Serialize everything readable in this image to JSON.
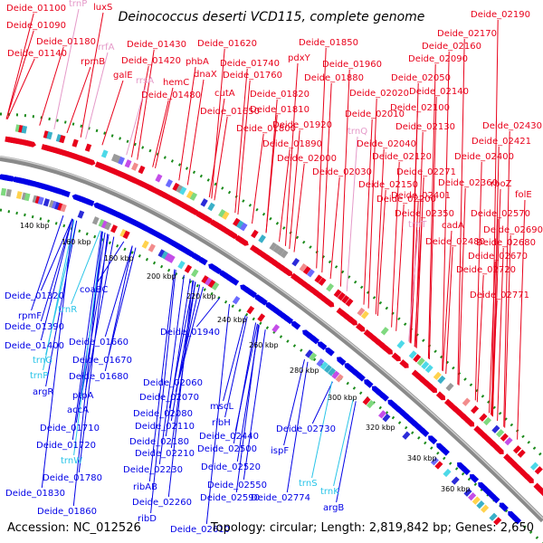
{
  "title": "Deinococcus deserti VCD115, complete genome",
  "footer": {
    "accession": "Accession: NC_012526",
    "info": "Topology: circular; Length: 2,819,842 bp; Genes: 2,650"
  },
  "colors": {
    "forward": "#e8001a",
    "reverse": "#0000e6",
    "rna": "#e59ac9",
    "rna_rev": "#29c4e8",
    "backbone": "#8a8a8a",
    "dots": "#1a8a1a"
  },
  "ticks": [
    "140 kbp",
    "160 kbp",
    "180 kbp",
    "200 kbp",
    "220 kbp",
    "240 kbp",
    "260 kbp",
    "280 kbp",
    "300 kbp",
    "320 kbp",
    "340 kbp",
    "360 kbp"
  ],
  "labels_top": [
    {
      "text": "Deide_01100",
      "kind": "f"
    },
    {
      "text": "Deide_01090",
      "kind": "f"
    },
    {
      "text": "trnP",
      "kind": "r"
    },
    {
      "text": "Deide_01180",
      "kind": "f"
    },
    {
      "text": "luxS",
      "kind": "f"
    },
    {
      "text": "Deide_01140",
      "kind": "f"
    },
    {
      "text": "rrfA",
      "kind": "r"
    },
    {
      "text": "rpmB",
      "kind": "f"
    },
    {
      "text": "Deide_01430",
      "kind": "f"
    },
    {
      "text": "Deide_01420",
      "kind": "f"
    },
    {
      "text": "galE",
      "kind": "f"
    },
    {
      "text": "rrsA",
      "kind": "r"
    },
    {
      "text": "Deide_01480",
      "kind": "f"
    },
    {
      "text": "hemC",
      "kind": "f"
    },
    {
      "text": "Deide_01620",
      "kind": "f"
    },
    {
      "text": "phbA",
      "kind": "f"
    },
    {
      "text": "dnaX",
      "kind": "f"
    },
    {
      "text": "Deide_01740",
      "kind": "f"
    },
    {
      "text": "Deide_01760",
      "kind": "f"
    },
    {
      "text": "pdxY",
      "kind": "f"
    },
    {
      "text": "Deide_01850",
      "kind": "f"
    },
    {
      "text": "Deide_01650",
      "kind": "f"
    },
    {
      "text": "cutA",
      "kind": "f"
    },
    {
      "text": "Deide_01820",
      "kind": "f"
    },
    {
      "text": "Deide_01810",
      "kind": "f"
    },
    {
      "text": "Deide_01800",
      "kind": "f"
    },
    {
      "text": "Deide_01920",
      "kind": "f"
    },
    {
      "text": "Deide_01890",
      "kind": "f"
    },
    {
      "text": "Deide_01960",
      "kind": "f"
    },
    {
      "text": "Deide_01880",
      "kind": "f"
    },
    {
      "text": "Deide_02020",
      "kind": "f"
    },
    {
      "text": "Deide_02010",
      "kind": "f"
    },
    {
      "text": "trnQ",
      "kind": "r"
    },
    {
      "text": "Deide_02040",
      "kind": "f"
    },
    {
      "text": "Deide_02000",
      "kind": "f"
    },
    {
      "text": "Deide_02030",
      "kind": "f"
    },
    {
      "text": "Deide_02150",
      "kind": "f"
    },
    {
      "text": "Deide_02200",
      "kind": "f"
    },
    {
      "text": "Deide_02120",
      "kind": "f"
    },
    {
      "text": "Deide_02130",
      "kind": "f"
    },
    {
      "text": "Deide_02100",
      "kind": "f"
    },
    {
      "text": "Deide_02140",
      "kind": "f"
    },
    {
      "text": "Deide_02050",
      "kind": "f"
    },
    {
      "text": "Deide_02090",
      "kind": "f"
    },
    {
      "text": "Deide_02160",
      "kind": "f"
    },
    {
      "text": "Deide_02170",
      "kind": "f"
    },
    {
      "text": "Deide_02190",
      "kind": "f"
    },
    {
      "text": "Deide_02271",
      "kind": "f"
    },
    {
      "text": "Deide_02400",
      "kind": "f"
    },
    {
      "text": "Deide_02421",
      "kind": "f"
    },
    {
      "text": "Deide_02430",
      "kind": "f"
    },
    {
      "text": "Deide_02360",
      "kind": "f"
    },
    {
      "text": "rpoZ",
      "kind": "f"
    },
    {
      "text": "Deide_02401",
      "kind": "f"
    },
    {
      "text": "folE",
      "kind": "f"
    },
    {
      "text": "Deide_02570",
      "kind": "f"
    },
    {
      "text": "Deide_02350",
      "kind": "f"
    },
    {
      "text": "trnT",
      "kind": "r"
    },
    {
      "text": "cadA",
      "kind": "f"
    },
    {
      "text": "Deide_02690",
      "kind": "f"
    },
    {
      "text": "Deide_02480",
      "kind": "f"
    },
    {
      "text": "Deide_02680",
      "kind": "f"
    },
    {
      "text": "Deide_02670",
      "kind": "f"
    },
    {
      "text": "Deide_02720",
      "kind": "f"
    },
    {
      "text": "Deide_02771",
      "kind": "f"
    }
  ],
  "labels_bottom": [
    {
      "text": "coaBC",
      "kind": "b"
    },
    {
      "text": "Deide_01320",
      "kind": "b"
    },
    {
      "text": "trnR",
      "kind": "c"
    },
    {
      "text": "rpmF",
      "kind": "b"
    },
    {
      "text": "Deide_01390",
      "kind": "b"
    },
    {
      "text": "Deide_01940",
      "kind": "b"
    },
    {
      "text": "Deide_01660",
      "kind": "b"
    },
    {
      "text": "Deide_01400",
      "kind": "b"
    },
    {
      "text": "trnG",
      "kind": "c"
    },
    {
      "text": "Deide_01670",
      "kind": "b"
    },
    {
      "text": "trnP",
      "kind": "c"
    },
    {
      "text": "Deide_01680",
      "kind": "b"
    },
    {
      "text": "argR",
      "kind": "b"
    },
    {
      "text": "Deide_02060",
      "kind": "b"
    },
    {
      "text": "Deide_02070",
      "kind": "b"
    },
    {
      "text": "ptpA",
      "kind": "b"
    },
    {
      "text": "accA",
      "kind": "b"
    },
    {
      "text": "mscL",
      "kind": "b"
    },
    {
      "text": "Deide_02080",
      "kind": "b"
    },
    {
      "text": "ribH",
      "kind": "b"
    },
    {
      "text": "Deide_02110",
      "kind": "b"
    },
    {
      "text": "Deide_01710",
      "kind": "b"
    },
    {
      "text": "Deide_02730",
      "kind": "b"
    },
    {
      "text": "Deide_02180",
      "kind": "b"
    },
    {
      "text": "Deide_02440",
      "kind": "b"
    },
    {
      "text": "Deide_01720",
      "kind": "b"
    },
    {
      "text": "Deide_02210",
      "kind": "b"
    },
    {
      "text": "Deide_02500",
      "kind": "b"
    },
    {
      "text": "ispF",
      "kind": "b"
    },
    {
      "text": "trnW",
      "kind": "c"
    },
    {
      "text": "Deide_02520",
      "kind": "b"
    },
    {
      "text": "Deide_01780",
      "kind": "b"
    },
    {
      "text": "Deide_02230",
      "kind": "b"
    },
    {
      "text": "trnS",
      "kind": "c"
    },
    {
      "text": "trnK",
      "kind": "c"
    },
    {
      "text": "ribAB",
      "kind": "b"
    },
    {
      "text": "Deide_02550",
      "kind": "b"
    },
    {
      "text": "Deide_01830",
      "kind": "b"
    },
    {
      "text": "Deide_02590",
      "kind": "b"
    },
    {
      "text": "Deide_02774",
      "kind": "b"
    },
    {
      "text": "Deide_02260",
      "kind": "b"
    },
    {
      "text": "argB",
      "kind": "b"
    },
    {
      "text": "Deide_01860",
      "kind": "b"
    },
    {
      "text": "ribD",
      "kind": "b"
    },
    {
      "text": "Deide_02610",
      "kind": "b"
    }
  ]
}
